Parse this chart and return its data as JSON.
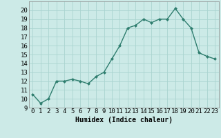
{
  "x": [
    0,
    1,
    2,
    3,
    4,
    5,
    6,
    7,
    8,
    9,
    10,
    11,
    12,
    13,
    14,
    15,
    16,
    17,
    18,
    19,
    20,
    21,
    22,
    23
  ],
  "y": [
    10.5,
    9.5,
    10.0,
    12.0,
    12.0,
    12.2,
    12.0,
    11.7,
    12.5,
    13.0,
    14.5,
    16.0,
    18.0,
    18.3,
    19.0,
    18.6,
    19.0,
    19.0,
    20.2,
    19.0,
    18.0,
    15.2,
    14.8,
    14.5
  ],
  "line_color": "#2e7d6e",
  "marker": "D",
  "marker_size": 2,
  "bg_color": "#cceae7",
  "grid_color": "#aad4d0",
  "xlabel": "Humidex (Indice chaleur)",
  "xlim": [
    -0.5,
    23.5
  ],
  "ylim": [
    9,
    21
  ],
  "yticks": [
    9,
    10,
    11,
    12,
    13,
    14,
    15,
    16,
    17,
    18,
    19,
    20
  ],
  "xticks": [
    0,
    1,
    2,
    3,
    4,
    5,
    6,
    7,
    8,
    9,
    10,
    11,
    12,
    13,
    14,
    15,
    16,
    17,
    18,
    19,
    20,
    21,
    22,
    23
  ],
  "xlabel_fontsize": 7,
  "tick_fontsize": 6.5,
  "line_width": 1.0
}
